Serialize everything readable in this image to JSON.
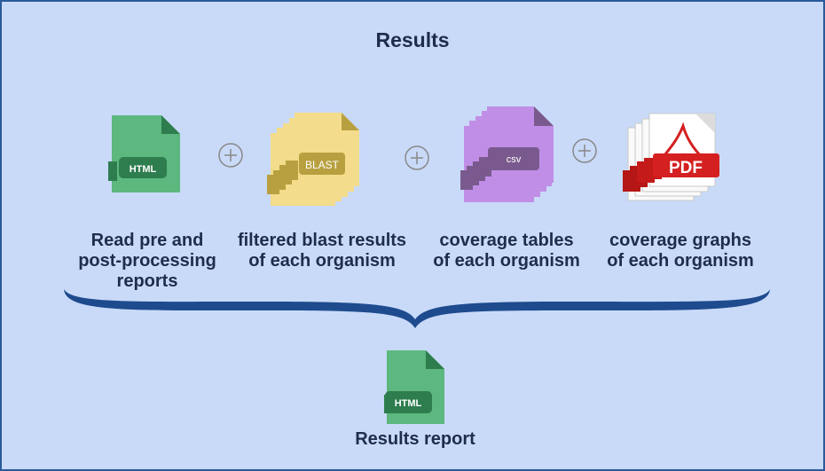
{
  "title": "Results",
  "inputs": [
    {
      "icon": "html-file-icon",
      "badge": "HTML",
      "lines": [
        "Read pre and",
        "post-processing",
        "reports"
      ]
    },
    {
      "icon": "blast-file-stack-icon",
      "badge": "BLAST",
      "lines": [
        "filtered blast results",
        "of each organism"
      ]
    },
    {
      "icon": "csv-file-stack-icon",
      "badge": "csv",
      "lines": [
        "coverage tables",
        "of each organism"
      ]
    },
    {
      "icon": "pdf-file-stack-icon",
      "badge": "PDF",
      "lines": [
        "coverage graphs",
        "of each organism"
      ]
    }
  ],
  "output": {
    "icon": "html-file-icon",
    "badge": "HTML",
    "label": "Results report"
  },
  "colors": {
    "background": "#c9daf8",
    "border": "#2a5a9a",
    "html_file": "#5cb87e",
    "html_badge": "#2e7d4f",
    "blast_file": "#f3dc8b",
    "blast_badge": "#b8a040",
    "csv_file": "#c08ee6",
    "csv_badge": "#7a5a8e",
    "pdf_red": "#d42020",
    "brace": "#1e4b8e"
  }
}
